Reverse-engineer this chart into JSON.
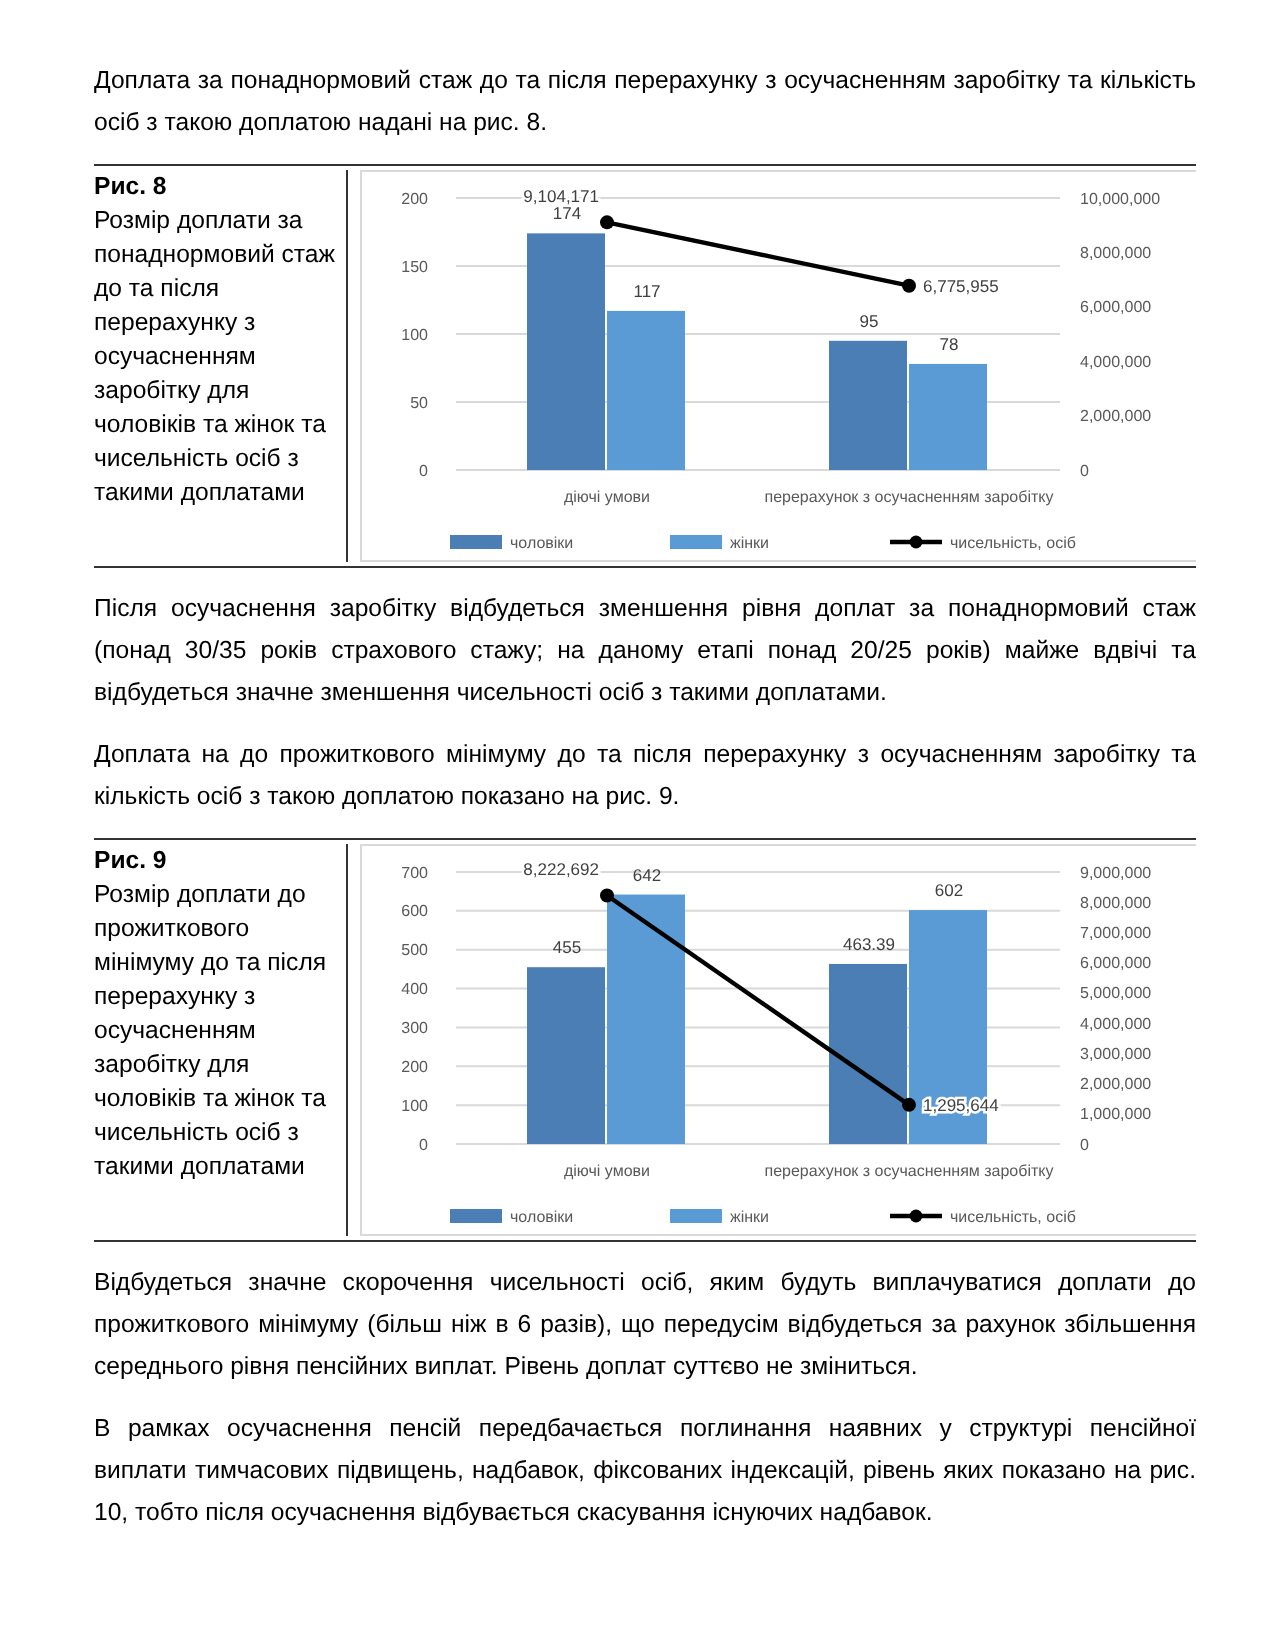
{
  "chart_data": [
    {
      "type": "bar",
      "annotations": [
        "Доплата за понаднормовий стаж до та після перерахунку з осучасненням заробітку та кількість осіб з такою доплатою надані на рис. 8.",
        "Рис. 8",
        "Розмір доплати за понаднормовий стаж до та після перерахунку з осучасненням заробітку для чоловіків та жінок та чисельність осіб з такими доплатами",
        "Після осучаснення заробітку відбудеться зменшення рівня доплат за понаднормовий стаж (понад 30/35 років страхового стажу; на даному етапі понад 20/25 років) майже вдвічі та відбудеться значне зменшення чисельності осіб з такими доплатами."
      ],
      "categories": [
        "діючі умови",
        "перерахунок з осучасненням заробітку"
      ],
      "series": [
        {
          "name": "чоловіки",
          "color": "#4a7eb4",
          "values": [
            174,
            95
          ]
        },
        {
          "name": "жінки",
          "color": "#5b9bd5",
          "values": [
            117,
            78
          ]
        },
        {
          "name": "чисельність, осіб",
          "type": "line",
          "axis": "y2",
          "color": "#000000",
          "values": [
            9104171,
            6775955
          ],
          "value_labels": [
            "9,104,171",
            "6,775,955"
          ]
        }
      ],
      "ylim": [
        0,
        200
      ],
      "yticks": [
        0,
        50,
        100,
        150,
        200
      ],
      "y2lim": [
        0,
        10000000
      ],
      "y2ticks": [
        0,
        {
          "value": 2000000,
          "label": "2,000,000"
        },
        {
          "value": 4000000,
          "label": "4,000,000"
        },
        {
          "value": 6000000,
          "label": "6,000,000"
        },
        {
          "value": 8000000,
          "label": "8,000,000"
        },
        {
          "value": 10000000,
          "label": "10,000,000"
        }
      ],
      "grid": "y",
      "legend": "bottom",
      "marker": "circle",
      "data_labels": true
    },
    {
      "type": "bar",
      "annotations": [
        "Доплата на до прожиткового мінімуму до та після перерахунку з осучасненням заробітку та кількість осіб з такою доплатою показано на рис. 9.",
        "Рис. 9",
        "Розмір доплати до прожиткового мінімуму до та після перерахунку з осучасненням заробітку для чоловіків та жінок та чисельність осіб з такими доплатами",
        "Відбудеться значне скорочення чисельності осіб, яким будуть виплачуватися доплати до прожиткового мінімуму (більш ніж в 6 разів), що передусім відбудеться за рахунок збільшення середнього рівня пенсійних виплат. Рівень доплат суттєво не зміниться.",
        "В рамках осучаснення пенсій передбачається поглинання наявних у структурі пенсійної виплати тимчасових підвищень, надбавок, фіксованих індексацій, рівень яких показано на рис. 10, тобто після осучаснення відбувається скасування існуючих надбавок."
      ],
      "categories": [
        "діючі умови",
        "перерахунок з осучасненням заробітку"
      ],
      "series": [
        {
          "name": "чоловіки",
          "color": "#4a7eb4",
          "values": [
            455,
            463.39
          ]
        },
        {
          "name": "жінки",
          "color": "#5b9bd5",
          "values": [
            642,
            602
          ]
        },
        {
          "name": "чисельність, осіб",
          "type": "line",
          "axis": "y2",
          "color": "#000000",
          "values": [
            8222692,
            1295644
          ],
          "value_labels": [
            "8,222,692",
            "1,295,644"
          ]
        }
      ],
      "ylim": [
        0,
        700
      ],
      "yticks": [
        0,
        100,
        200,
        300,
        400,
        500,
        600,
        700
      ],
      "y2lim": [
        0,
        9000000
      ],
      "y2ticks": [
        0,
        {
          "value": 1000000,
          "label": "1,000,000"
        },
        {
          "value": 2000000,
          "label": "2,000,000"
        },
        {
          "value": 3000000,
          "label": "3,000,000"
        },
        {
          "value": 4000000,
          "label": "4,000,000"
        },
        {
          "value": 5000000,
          "label": "5,000,000"
        },
        {
          "value": 6000000,
          "label": "6,000,000"
        },
        {
          "value": 7000000,
          "label": "7,000,000"
        },
        {
          "value": 8000000,
          "label": "8,000,000"
        },
        {
          "value": 9000000,
          "label": "9,000,000"
        }
      ],
      "grid": "y",
      "legend": "bottom",
      "marker": "circle",
      "data_labels": true
    }
  ]
}
